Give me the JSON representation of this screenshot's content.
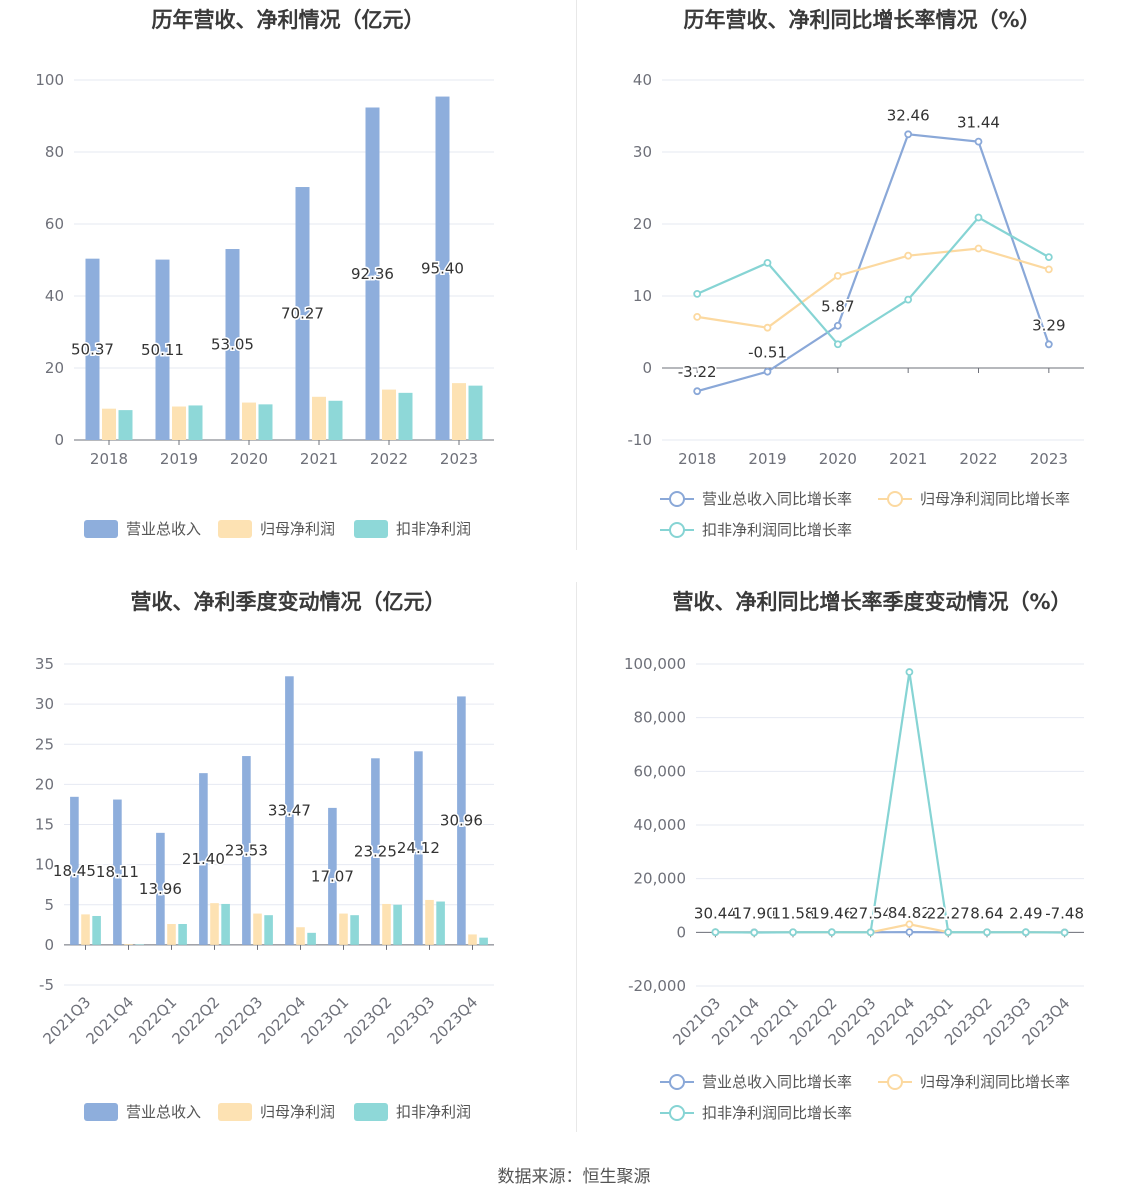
{
  "colors": {
    "revenue": "#8eaedc",
    "parent_np": "#fde2b3",
    "deducted_np": "#8ed8d8",
    "revenue_line": "#8aa8d8",
    "parent_line": "#fcd9a0",
    "deducted_line": "#86d4d4",
    "grid": "#e6e9f2",
    "axis": "#6e7079",
    "tick_text": "#6e7079"
  },
  "source": "数据来源：恒生聚源",
  "chart_data": [
    {
      "type": "bar",
      "title": "历年营收、净利情况（亿元）",
      "categories": [
        "2018",
        "2019",
        "2020",
        "2021",
        "2022",
        "2023"
      ],
      "ylim": [
        0,
        100
      ],
      "yticks": [
        0,
        20,
        40,
        60,
        80,
        100
      ],
      "legend_position": "bottom",
      "series": [
        {
          "name": "营业总收入",
          "values": [
            50.37,
            50.11,
            53.05,
            70.27,
            92.36,
            95.4
          ],
          "labels": [
            "50.37",
            "50.11",
            "53.05",
            "70.27",
            "92.36",
            "95.40"
          ]
        },
        {
          "name": "归母净利润",
          "values": [
            8.7,
            9.3,
            10.4,
            12.0,
            14.0,
            15.8
          ],
          "labels": []
        },
        {
          "name": "扣非净利润",
          "values": [
            8.3,
            9.6,
            9.9,
            10.9,
            13.1,
            15.1
          ],
          "labels": []
        }
      ]
    },
    {
      "type": "line",
      "title": "历年营收、净利同比增长率情况（%）",
      "categories": [
        "2018",
        "2019",
        "2020",
        "2021",
        "2022",
        "2023"
      ],
      "ylim": [
        -10,
        40
      ],
      "yticks": [
        -10,
        0,
        10,
        20,
        30,
        40
      ],
      "legend_position": "bottom",
      "series": [
        {
          "name": "营业总收入同比增长率",
          "values": [
            -3.22,
            -0.51,
            5.87,
            32.46,
            31.44,
            3.29
          ],
          "labels": [
            "-3.22",
            "-0.51",
            "5.87",
            "32.46",
            "31.44",
            "3.29"
          ]
        },
        {
          "name": "归母净利润同比增长率",
          "values": [
            7.1,
            5.6,
            12.8,
            15.6,
            16.6,
            13.7
          ],
          "labels": []
        },
        {
          "name": "扣非净利润同比增长率",
          "values": [
            10.3,
            14.6,
            3.3,
            9.5,
            20.9,
            15.4
          ],
          "labels": []
        }
      ]
    },
    {
      "type": "bar",
      "title": "营收、净利季度变动情况（亿元）",
      "categories": [
        "2021Q3",
        "2021Q4",
        "2022Q1",
        "2022Q2",
        "2022Q3",
        "2022Q4",
        "2023Q1",
        "2023Q2",
        "2023Q3",
        "2023Q4"
      ],
      "ylim": [
        -5,
        35
      ],
      "yticks": [
        -5,
        0,
        5,
        10,
        15,
        20,
        25,
        30,
        35
      ],
      "legend_position": "bottom",
      "series": [
        {
          "name": "营业总收入",
          "values": [
            18.45,
            18.11,
            13.96,
            21.4,
            23.53,
            33.47,
            17.07,
            23.25,
            24.12,
            30.96
          ],
          "labels": [
            "18.45",
            "18.11",
            "13.96",
            "21.40",
            "23.53",
            "33.47",
            "17.07",
            "23.25",
            "24.12",
            "30.96"
          ]
        },
        {
          "name": "归母净利润",
          "values": [
            3.8,
            0.1,
            2.6,
            5.2,
            3.9,
            2.2,
            3.9,
            5.1,
            5.6,
            1.3
          ],
          "labels": []
        },
        {
          "name": "扣非净利润",
          "values": [
            3.6,
            0.05,
            2.6,
            5.1,
            3.7,
            1.5,
            3.7,
            5.0,
            5.4,
            0.9
          ],
          "labels": []
        }
      ]
    },
    {
      "type": "line",
      "title": "营收、净利同比增长率季度变动情况（%）",
      "categories": [
        "2021Q3",
        "2021Q4",
        "2022Q1",
        "2022Q2",
        "2022Q3",
        "2022Q4",
        "2023Q1",
        "2023Q2",
        "2023Q3",
        "2023Q4"
      ],
      "ylim": [
        -20000,
        100000
      ],
      "yticks": [
        -20000,
        0,
        20000,
        40000,
        60000,
        80000,
        100000
      ],
      "legend_position": "bottom",
      "series": [
        {
          "name": "营业总收入同比增长率",
          "values": [
            30.44,
            17.9,
            11.58,
            19.46,
            27.54,
            84.82,
            22.27,
            8.64,
            2.49,
            -7.48
          ],
          "labels": [
            "30.44",
            "17.90",
            "11.58",
            "19.46",
            "27.54",
            "84.82",
            "22.27",
            "8.64",
            "2.49",
            "-7.48"
          ]
        },
        {
          "name": "归母净利润同比增长率",
          "values": [
            60,
            -50,
            20,
            40,
            10,
            3000,
            50,
            30,
            40,
            -70
          ],
          "labels": []
        },
        {
          "name": "扣非净利润同比增长率",
          "values": [
            60,
            -80,
            25,
            50,
            15,
            97000,
            80,
            40,
            50,
            -80
          ],
          "labels": []
        }
      ]
    }
  ]
}
